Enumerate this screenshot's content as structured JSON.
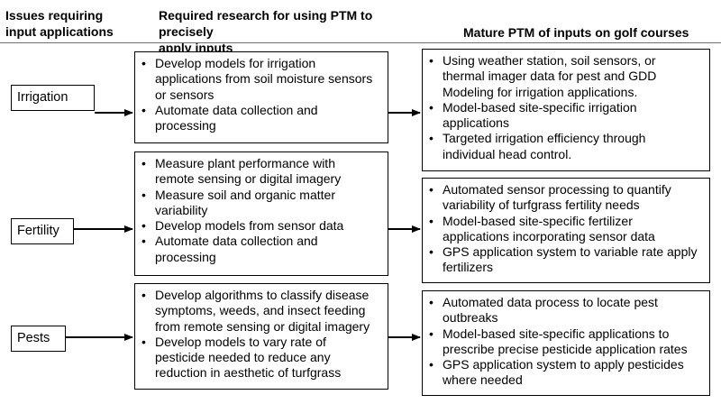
{
  "headers": {
    "col1": [
      "Issues requiring",
      "input applications"
    ],
    "col2": [
      "Required research for using PTM to precisely",
      "apply inputs"
    ],
    "col3": "Mature PTM of inputs on golf courses"
  },
  "rows": [
    {
      "issue": "Irrigation",
      "research": [
        [
          "Develop models for irrigation",
          "applications from soil moisture sensors",
          "or sensors"
        ],
        [
          "Automate data collection and",
          "processing"
        ]
      ],
      "mature": [
        [
          "Using weather station, soil sensors, or",
          "thermal imager data for pest and GDD",
          "Modeling for irrigation applications."
        ],
        [
          "Model-based site-specific irrigation",
          "applications"
        ],
        [
          "Targeted irrigation efficiency through",
          "individual head control."
        ]
      ]
    },
    {
      "issue": "Fertility",
      "research": [
        [
          "Measure plant performance with",
          "remote sensing or digital imagery"
        ],
        [
          "Measure soil and organic matter",
          "variability"
        ],
        [
          "Develop models from  sensor data"
        ],
        [
          "Automate data collection and",
          "processing"
        ]
      ],
      "mature": [
        [
          "Automated sensor processing to quantify",
          "variability of turfgrass fertility needs"
        ],
        [
          "Model-based site-specific fertilizer",
          "applications incorporating sensor data"
        ],
        [
          "GPS application system to variable rate apply",
          "fertilizers"
        ]
      ]
    },
    {
      "issue": "Pests",
      "research": [
        [
          "Develop algorithms to classify disease",
          "symptoms, weeds, and insect feeding",
          "from remote sensing or digital imagery"
        ],
        [
          "Develop models to vary rate of",
          "pesticide needed to reduce any",
          "reduction in aesthetic of turfgrass"
        ]
      ],
      "mature": [
        [
          "Automated data process to locate pest",
          "outbreaks"
        ],
        [
          "Model-based site-specific applications to",
          "prescribe precise pesticide application rates"
        ],
        [
          "GPS application system to apply pesticides",
          "where needed"
        ]
      ]
    }
  ]
}
